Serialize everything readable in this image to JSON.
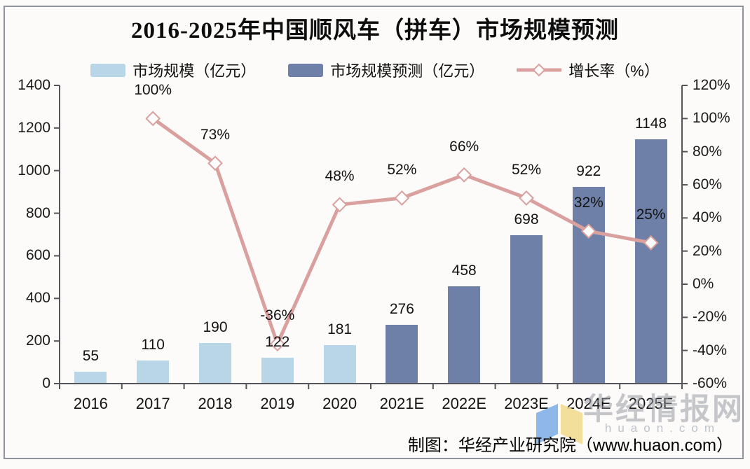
{
  "title": "2016-2025年中国顺风车（拼车）市场规模预测",
  "legend": [
    {
      "label": "市场规模（亿元）",
      "type": "bar",
      "color": "#b9d6e8"
    },
    {
      "label": "市场规模预测（亿元）",
      "type": "bar",
      "color": "#6e80a8"
    },
    {
      "label": "增长率（%）",
      "type": "line",
      "color": "#d9a09e",
      "marker": "diamond"
    }
  ],
  "footer": "制图：华经产业研究院（www.huaon.com）",
  "watermark": {
    "text": "华经情报网",
    "subtext": "huaon.com",
    "logo_colors": {
      "left": "#82b1e6",
      "right": "#f2dd92"
    }
  },
  "chart_data": {
    "type": "bar",
    "subtype": "bar+line combo, dual axis",
    "categories": [
      "2016",
      "2017",
      "2018",
      "2019",
      "2020",
      "2021E",
      "2022E",
      "2023E",
      "2024E",
      "2025E"
    ],
    "series": [
      {
        "name": "市场规模（亿元）",
        "type": "bar",
        "axis": "left",
        "color": "#b9d6e8",
        "values": [
          55,
          110,
          190,
          122,
          181,
          null,
          null,
          null,
          null,
          null
        ]
      },
      {
        "name": "市场规模预测（亿元）",
        "type": "bar",
        "axis": "left",
        "color": "#6e80a8",
        "values": [
          null,
          null,
          null,
          null,
          null,
          276,
          458,
          698,
          922,
          1148
        ]
      },
      {
        "name": "增长率（%）",
        "type": "line",
        "axis": "right",
        "color": "#d9a09e",
        "marker_fill": "#fdfdfd",
        "values": [
          null,
          100,
          73,
          -36,
          48,
          52,
          66,
          52,
          32,
          25
        ],
        "labels": [
          null,
          "100%",
          "73%",
          "-36%",
          "48%",
          "52%",
          "66%",
          "52%",
          "32%",
          "25%"
        ]
      }
    ],
    "left_axis": {
      "min": 0,
      "max": 1400,
      "step": 200,
      "ticks": [
        "0",
        "200",
        "400",
        "600",
        "800",
        "1000",
        "1200",
        "1400"
      ]
    },
    "right_axis": {
      "min": -60,
      "max": 120,
      "step": 20,
      "ticks": [
        "-60%",
        "-40%",
        "-20%",
        "0%",
        "20%",
        "40%",
        "60%",
        "80%",
        "100%",
        "120%"
      ]
    },
    "grid": false,
    "legend_position": "top",
    "axis_color": "#55565a"
  }
}
